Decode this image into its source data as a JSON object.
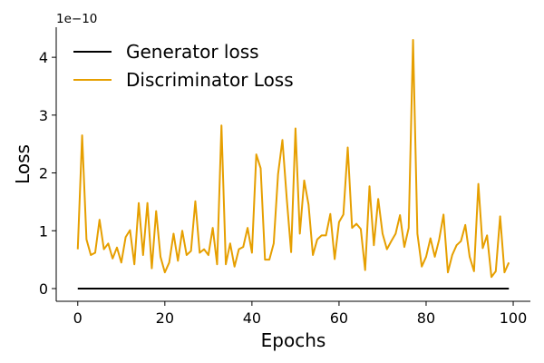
{
  "chart_data": {
    "type": "line",
    "title": "",
    "xlabel": "Epochs",
    "ylabel": "Loss",
    "y_offset_label": "1e−10",
    "xlim": [
      -4.95,
      103.95
    ],
    "ylim": [
      -0.22,
      4.52
    ],
    "x_ticks": [
      0,
      20,
      40,
      60,
      80,
      100
    ],
    "x_tick_labels": [
      "0",
      "20",
      "40",
      "60",
      "80",
      "100"
    ],
    "y_ticks": [
      0,
      1,
      2,
      3,
      4
    ],
    "y_tick_labels": [
      "0",
      "1",
      "2",
      "3",
      "4"
    ],
    "grid": false,
    "legend_position": "top-left",
    "series": [
      {
        "name": "Generator loss",
        "color": "#000000",
        "x_start": 0,
        "x_step": 1,
        "values": [
          0,
          0,
          0,
          0,
          0,
          0,
          0,
          0,
          0,
          0,
          0,
          0,
          0,
          0,
          0,
          0,
          0,
          0,
          0,
          0,
          0,
          0,
          0,
          0,
          0,
          0,
          0,
          0,
          0,
          0,
          0,
          0,
          0,
          0,
          0,
          0,
          0,
          0,
          0,
          0,
          0,
          0,
          0,
          0,
          0,
          0,
          0,
          0,
          0,
          0,
          0,
          0,
          0,
          0,
          0,
          0,
          0,
          0,
          0,
          0,
          0,
          0,
          0,
          0,
          0,
          0,
          0,
          0,
          0,
          0,
          0,
          0,
          0,
          0,
          0,
          0,
          0,
          0,
          0,
          0,
          0,
          0,
          0,
          0,
          0,
          0,
          0,
          0,
          0,
          0,
          0,
          0,
          0,
          0,
          0,
          0,
          0,
          0,
          0,
          0
        ]
      },
      {
        "name": "Discriminator Loss",
        "color": "#e69f00",
        "x_start": 0,
        "x_step": 1,
        "values": [
          0.68,
          2.65,
          0.85,
          0.58,
          0.62,
          1.19,
          0.68,
          0.78,
          0.52,
          0.71,
          0.45,
          0.89,
          1.01,
          0.42,
          1.48,
          0.58,
          1.48,
          0.35,
          1.34,
          0.55,
          0.28,
          0.45,
          0.95,
          0.48,
          1.0,
          0.58,
          0.65,
          1.51,
          0.62,
          0.68,
          0.58,
          1.05,
          0.42,
          2.82,
          0.42,
          0.78,
          0.38,
          0.68,
          0.72,
          1.05,
          0.62,
          2.32,
          2.08,
          0.5,
          0.5,
          0.78,
          1.98,
          2.57,
          1.55,
          0.63,
          2.77,
          0.95,
          1.87,
          1.45,
          0.58,
          0.85,
          0.92,
          0.92,
          1.29,
          0.51,
          1.15,
          1.28,
          2.44,
          1.05,
          1.12,
          1.03,
          0.32,
          1.77,
          0.75,
          1.55,
          0.95,
          0.68,
          0.82,
          0.95,
          1.27,
          0.72,
          1.05,
          4.3,
          0.95,
          0.38,
          0.55,
          0.87,
          0.55,
          0.85,
          1.28,
          0.28,
          0.58,
          0.75,
          0.82,
          1.1,
          0.55,
          0.3,
          1.81,
          0.7,
          0.92,
          0.2,
          0.3,
          1.25,
          0.28,
          0.45
        ]
      }
    ]
  }
}
